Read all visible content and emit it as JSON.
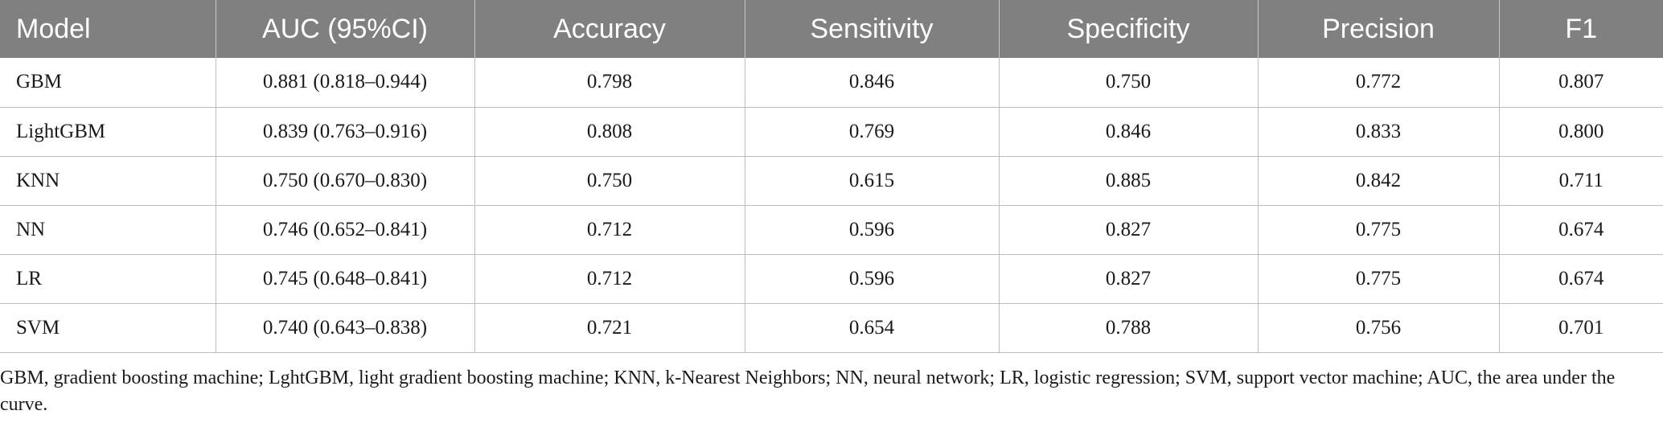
{
  "table": {
    "headers": [
      "Model",
      "AUC (95%CI)",
      "Accuracy",
      "Sensitivity",
      "Specificity",
      "Precision",
      "F1"
    ],
    "rows": [
      [
        "GBM",
        "0.881 (0.818–0.944)",
        "0.798",
        "0.846",
        "0.750",
        "0.772",
        "0.807"
      ],
      [
        "LightGBM",
        "0.839 (0.763–0.916)",
        "0.808",
        "0.769",
        "0.846",
        "0.833",
        "0.800"
      ],
      [
        "KNN",
        "0.750 (0.670–0.830)",
        "0.750",
        "0.615",
        "0.885",
        "0.842",
        "0.711"
      ],
      [
        "NN",
        "0.746 (0.652–0.841)",
        "0.712",
        "0.596",
        "0.827",
        "0.775",
        "0.674"
      ],
      [
        "LR",
        "0.745 (0.648–0.841)",
        "0.712",
        "0.596",
        "0.827",
        "0.775",
        "0.674"
      ],
      [
        "SVM",
        "0.740 (0.643–0.838)",
        "0.721",
        "0.654",
        "0.788",
        "0.756",
        "0.701"
      ]
    ]
  },
  "footnote": "GBM, gradient boosting machine; LghtGBM, light gradient boosting machine; KNN, k-Nearest Neighbors; NN, neural network; LR, logistic regression; SVM, support vector machine; AUC, the area under the curve.",
  "colors": {
    "header_bg": "#808080",
    "header_text": "#ffffff",
    "grid": "#bdbdbd"
  }
}
